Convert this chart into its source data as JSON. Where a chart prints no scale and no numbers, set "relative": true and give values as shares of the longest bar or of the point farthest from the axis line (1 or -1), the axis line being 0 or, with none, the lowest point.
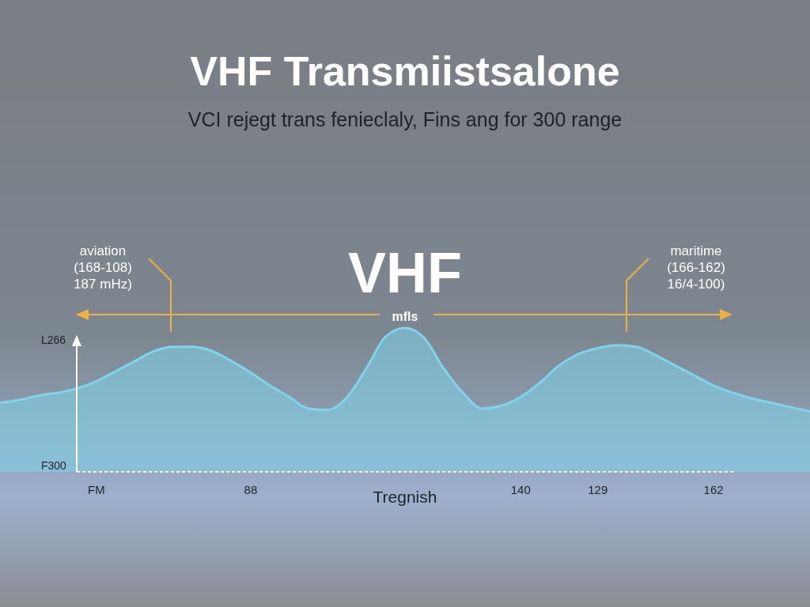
{
  "chart_data": {
    "type": "area",
    "title": "VHF Transmiistsalone",
    "subtitle": "VCI rejegt trans fenieclaly, Fins ang for 300 range",
    "xlabel": "Tregnish",
    "relative": true,
    "color": "#7fd3ea",
    "categories": [
      null,
      null,
      null,
      null,
      null,
      "FM",
      null,
      null,
      null,
      null,
      null,
      null,
      null,
      "88",
      null,
      null,
      null,
      null,
      null,
      null,
      null,
      null,
      null,
      null,
      null,
      null,
      null,
      "140",
      null,
      null,
      null,
      "129",
      null,
      null,
      null,
      null,
      null,
      "162",
      null,
      null,
      null,
      null,
      null
    ],
    "values": [
      0.48,
      0.5,
      0.53,
      0.55,
      0.58,
      0.63,
      0.7,
      0.77,
      0.84,
      0.87,
      0.87,
      0.84,
      0.77,
      0.69,
      0.6,
      0.52,
      0.44,
      0.43,
      0.52,
      0.72,
      0.94,
      1,
      0.93,
      0.72,
      0.55,
      0.44,
      0.46,
      0.52,
      0.62,
      0.74,
      0.82,
      0.86,
      0.88,
      0.87,
      0.81,
      0.74,
      0.67,
      0.6,
      0.55,
      0.51,
      0.48,
      0.45,
      0.42
    ],
    "annotations": [
      "aviation\n(168-108)\n187 mHz)",
      "maritime\n(166-162)\n16/4-100)",
      "VHF",
      "mfls",
      "L266",
      "F300"
    ]
  }
}
